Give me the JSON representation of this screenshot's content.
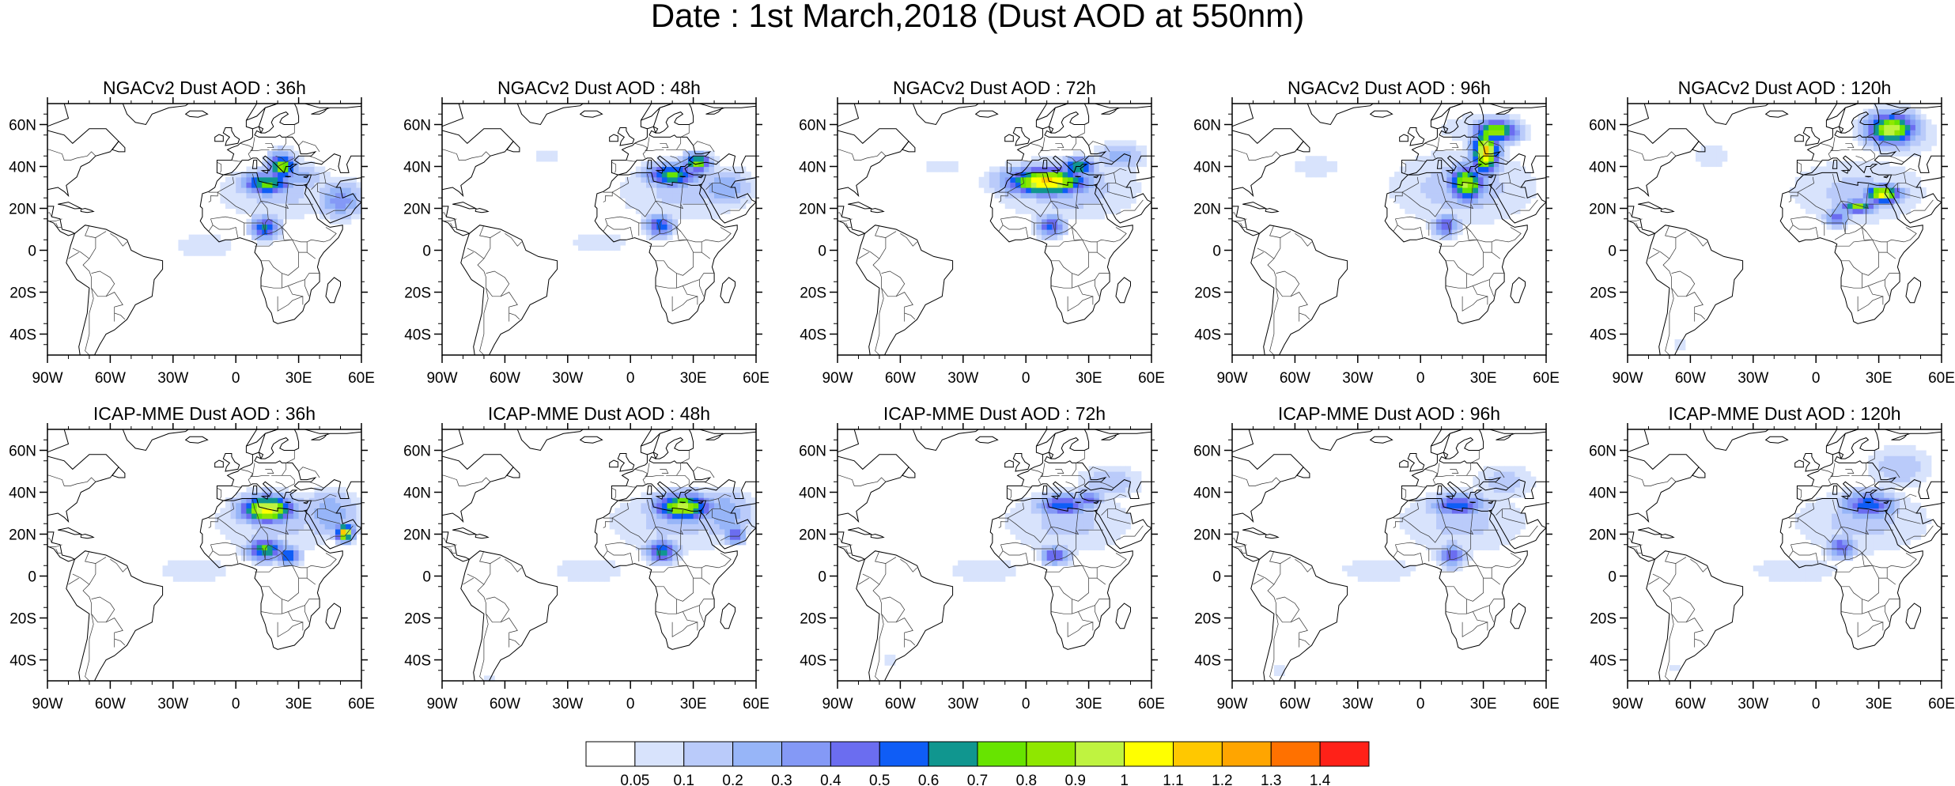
{
  "title": "Date : 1st March,2018 (Dust AOD at 550nm)",
  "map": {
    "lon_range": [
      -90,
      60
    ],
    "lat_range": [
      -50,
      70
    ],
    "lon_ticks": [
      "90W",
      "60W",
      "30W",
      "0",
      "30E",
      "60E"
    ],
    "lat_ticks": [
      "60N",
      "40N",
      "20N",
      "0",
      "20S",
      "40S"
    ],
    "land_outline_color": "#000000"
  },
  "panels": [
    {
      "model": "NGACv2",
      "lead": "36h",
      "title": "NGACv2 Dust AOD : 36h",
      "plumes": [
        [
          20,
          28,
          30,
          14,
          0.12
        ],
        [
          -15,
          2,
          22,
          9,
          0.07
        ],
        [
          15,
          32,
          11,
          5,
          0.8
        ],
        [
          22,
          40,
          6,
          6,
          0.9
        ],
        [
          14,
          11,
          6,
          5,
          0.65
        ],
        [
          30,
          35,
          12,
          6,
          0.25
        ],
        [
          50,
          24,
          10,
          8,
          0.35
        ]
      ]
    },
    {
      "model": "NGACv2",
      "lead": "48h",
      "title": "NGACv2 Dust AOD : 48h",
      "plumes": [
        [
          25,
          28,
          32,
          15,
          0.12
        ],
        [
          -15,
          4,
          22,
          8,
          0.07
        ],
        [
          -40,
          45,
          12,
          4,
          0.07
        ],
        [
          20,
          36,
          12,
          5,
          0.75
        ],
        [
          32,
          42,
          6,
          4,
          0.85
        ],
        [
          14,
          12,
          6,
          5,
          0.6
        ],
        [
          45,
          30,
          12,
          8,
          0.3
        ]
      ]
    },
    {
      "model": "NGACv2",
      "lead": "72h",
      "title": "NGACv2 Dust AOD : 72h",
      "plumes": [
        [
          20,
          30,
          34,
          16,
          0.14
        ],
        [
          -40,
          40,
          20,
          8,
          0.06
        ],
        [
          -70,
          55,
          12,
          8,
          0.05
        ],
        [
          10,
          33,
          18,
          6,
          1.15
        ],
        [
          25,
          40,
          7,
          4,
          0.75
        ],
        [
          12,
          12,
          6,
          5,
          0.55
        ],
        [
          45,
          45,
          10,
          6,
          0.3
        ]
      ]
    },
    {
      "model": "NGACv2",
      "lead": "96h",
      "title": "NGACv2 Dust AOD : 96h",
      "plumes": [
        [
          20,
          30,
          34,
          18,
          0.14
        ],
        [
          -50,
          40,
          22,
          10,
          0.06
        ],
        [
          30,
          58,
          25,
          8,
          0.1
        ],
        [
          22,
          32,
          8,
          8,
          0.95
        ],
        [
          31,
          47,
          6,
          10,
          1.15
        ],
        [
          36,
          57,
          10,
          5,
          0.9
        ],
        [
          12,
          12,
          6,
          5,
          0.5
        ]
      ]
    },
    {
      "model": "NGACv2",
      "lead": "120h",
      "title": "NGACv2 Dust AOD : 120h",
      "plumes": [
        [
          20,
          28,
          34,
          16,
          0.12
        ],
        [
          -50,
          45,
          20,
          10,
          0.06
        ],
        [
          40,
          55,
          18,
          10,
          0.15
        ],
        [
          36,
          58,
          11,
          7,
          1.0
        ],
        [
          32,
          27,
          8,
          4,
          1.05
        ],
        [
          20,
          21,
          8,
          3,
          0.85
        ],
        [
          10,
          16,
          5,
          4,
          0.5
        ],
        [
          -65,
          -45,
          5,
          4,
          0.07
        ]
      ]
    },
    {
      "model": "ICAP-MME",
      "lead": "36h",
      "title": "ICAP-MME Dust AOD : 36h",
      "plumes": [
        [
          20,
          26,
          32,
          16,
          0.12
        ],
        [
          -20,
          3,
          22,
          8,
          0.08
        ],
        [
          15,
          32,
          12,
          6,
          1.1
        ],
        [
          14,
          13,
          8,
          5,
          0.75
        ],
        [
          25,
          10,
          5,
          4,
          0.6
        ],
        [
          52,
          21,
          4,
          4,
          1.15
        ],
        [
          45,
          30,
          12,
          10,
          0.3
        ]
      ]
    },
    {
      "model": "ICAP-MME",
      "lead": "48h",
      "title": "ICAP-MME Dust AOD : 48h",
      "plumes": [
        [
          22,
          26,
          34,
          16,
          0.12
        ],
        [
          -20,
          3,
          22,
          8,
          0.08
        ],
        [
          25,
          33,
          13,
          6,
          0.95
        ],
        [
          15,
          12,
          7,
          5,
          0.65
        ],
        [
          50,
          20,
          4,
          4,
          0.6
        ],
        [
          45,
          30,
          12,
          10,
          0.3
        ],
        [
          -67,
          -48,
          5,
          3,
          0.07
        ]
      ]
    },
    {
      "model": "ICAP-MME",
      "lead": "72h",
      "title": "ICAP-MME Dust AOD : 72h",
      "plumes": [
        [
          20,
          26,
          32,
          16,
          0.12
        ],
        [
          -20,
          3,
          22,
          8,
          0.08
        ],
        [
          40,
          45,
          15,
          8,
          0.15
        ],
        [
          18,
          34,
          12,
          5,
          0.6
        ],
        [
          30,
          37,
          6,
          4,
          0.5
        ],
        [
          14,
          10,
          6,
          4,
          0.55
        ],
        [
          -65,
          -40,
          5,
          4,
          0.07
        ]
      ]
    },
    {
      "model": "ICAP-MME",
      "lead": "96h",
      "title": "ICAP-MME Dust AOD : 96h",
      "plumes": [
        [
          20,
          26,
          32,
          16,
          0.12
        ],
        [
          -20,
          3,
          24,
          8,
          0.08
        ],
        [
          40,
          45,
          14,
          8,
          0.15
        ],
        [
          18,
          34,
          12,
          5,
          0.6
        ],
        [
          15,
          10,
          6,
          5,
          0.5
        ],
        [
          -68,
          -45,
          5,
          3,
          0.07
        ]
      ]
    },
    {
      "model": "ICAP-MME",
      "lead": "120h",
      "title": "ICAP-MME Dust AOD : 120h",
      "plumes": [
        [
          22,
          26,
          34,
          16,
          0.12
        ],
        [
          -10,
          3,
          28,
          8,
          0.08
        ],
        [
          40,
          52,
          15,
          10,
          0.15
        ],
        [
          25,
          34,
          12,
          6,
          0.6
        ],
        [
          12,
          14,
          6,
          5,
          0.5
        ],
        [
          -68,
          -44,
          5,
          3,
          0.07
        ]
      ]
    }
  ],
  "colorbar": {
    "levels": [
      "0.05",
      "0.1",
      "0.2",
      "0.3",
      "0.4",
      "0.5",
      "0.6",
      "0.7",
      "0.8",
      "0.9",
      "1",
      "1.1",
      "1.2",
      "1.3",
      "1.4"
    ],
    "colors": [
      "#ffffff",
      "#d8e3fc",
      "#bacbfa",
      "#97b5f8",
      "#8499f6",
      "#6b6df0",
      "#0f5df6",
      "#10968f",
      "#67e400",
      "#8fe700",
      "#bff340",
      "#ffff00",
      "#ffc800",
      "#ffa500",
      "#ff7100",
      "#ff2118"
    ]
  }
}
